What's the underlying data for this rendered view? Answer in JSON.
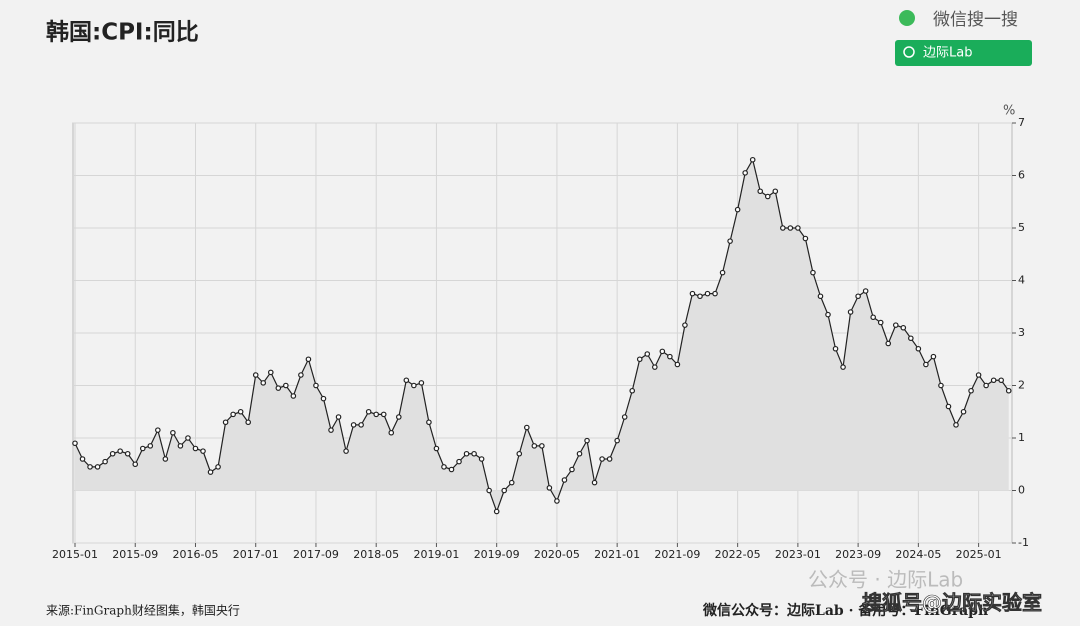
{
  "chart_data": {
    "type": "line",
    "title": "韩国:CPI:同比",
    "y_unit": "%",
    "categories": [
      "2015-01",
      null,
      null,
      null,
      null,
      null,
      null,
      null,
      "2015-09",
      null,
      null,
      null,
      null,
      null,
      null,
      null,
      "2016-05",
      null,
      null,
      null,
      null,
      null,
      null,
      null,
      "2017-01",
      null,
      null,
      null,
      null,
      null,
      null,
      null,
      "2017-09",
      null,
      null,
      null,
      null,
      null,
      null,
      null,
      "2018-05",
      null,
      null,
      null,
      null,
      null,
      null,
      null,
      "2019-01",
      null,
      null,
      null,
      null,
      null,
      null,
      null,
      "2019-09",
      null,
      null,
      null,
      null,
      null,
      null,
      null,
      "2020-05",
      null,
      null,
      null,
      null,
      null,
      null,
      null,
      "2021-01",
      null,
      null,
      null,
      null,
      null,
      null,
      null,
      "2021-09",
      null,
      null,
      null,
      null,
      null,
      null,
      null,
      "2022-05",
      null,
      null,
      null,
      null,
      null,
      null,
      null,
      "2023-01",
      null,
      null,
      null,
      null,
      null,
      null,
      null,
      "2023-09",
      null,
      null,
      null,
      null,
      null,
      null,
      null,
      "2024-05",
      null,
      null,
      null,
      null,
      null,
      null,
      null,
      "2025-01",
      null,
      null,
      null,
      null
    ],
    "series": [
      {
        "color": "#222222",
        "fill": "#e0e0e0",
        "values": [
          0.9,
          0.6,
          0.45,
          0.45,
          0.55,
          0.7,
          0.75,
          0.7,
          0.5,
          0.8,
          0.85,
          1.15,
          0.6,
          1.1,
          0.85,
          1.0,
          0.8,
          0.75,
          0.35,
          0.45,
          1.3,
          1.45,
          1.5,
          1.3,
          2.2,
          2.05,
          2.25,
          1.95,
          2.0,
          1.8,
          2.2,
          2.5,
          2.0,
          1.75,
          1.15,
          1.4,
          0.75,
          1.25,
          1.25,
          1.5,
          1.45,
          1.45,
          1.1,
          1.4,
          2.1,
          2.0,
          2.05,
          1.3,
          0.8,
          0.45,
          0.4,
          0.55,
          0.7,
          0.7,
          0.6,
          0.0,
          -0.4,
          0.0,
          0.15,
          0.7,
          1.2,
          0.85,
          0.85,
          0.05,
          -0.2,
          0.2,
          0.4,
          0.7,
          0.95,
          0.15,
          0.6,
          0.6,
          0.95,
          1.4,
          1.9,
          2.5,
          2.6,
          2.35,
          2.65,
          2.55,
          2.4,
          3.15,
          3.75,
          3.7,
          3.75,
          3.75,
          4.15,
          4.75,
          5.35,
          6.05,
          6.3,
          5.7,
          5.6,
          5.7,
          5.0,
          5.0,
          5.0,
          4.8,
          4.15,
          3.7,
          3.35,
          2.7,
          2.35,
          3.4,
          3.7,
          3.8,
          3.3,
          3.2,
          2.8,
          3.15,
          3.1,
          2.9,
          2.7,
          2.4,
          2.55,
          2.0,
          1.6,
          1.25,
          1.5,
          1.9,
          2.2,
          2.0,
          2.1,
          2.1,
          1.9
        ]
      }
    ],
    "ylim": [
      -1,
      7
    ],
    "yticks": [
      -1,
      0,
      1,
      2,
      3,
      4,
      5,
      6,
      7
    ],
    "grid": true,
    "y_axis_side": "right"
  },
  "header": {
    "search": "微信搜一搜",
    "button": "边际Lab"
  },
  "footer": {
    "source": "来源:FinGraph财经图集，韩国央行",
    "account": "微信公众号：边际Lab · 备用号：FinGraph",
    "watermark1": "公众号 · 边际Lab",
    "watermark2": "搜狐号@边际实验室"
  }
}
